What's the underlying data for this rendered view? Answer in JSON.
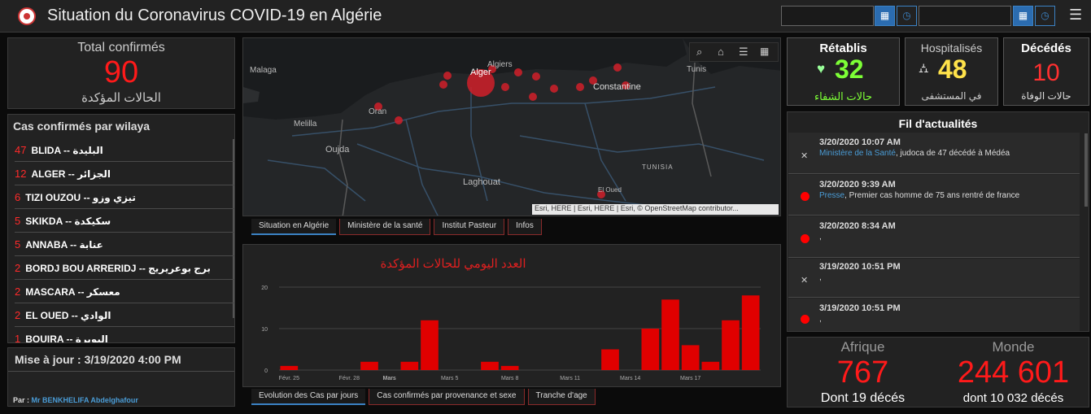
{
  "header": {
    "title": "Situation du Coronavirus COVID-19 en Algérie",
    "menu_icon": "☰",
    "cal_icon": "▦",
    "clock_icon": "◷"
  },
  "total": {
    "title": "Total confirmés",
    "value": "90",
    "label_ar": "الحالات المؤكدة"
  },
  "wilaya": {
    "title": "Cas confirmés par wilaya",
    "items": [
      {
        "count": "47",
        "name": "BLIDA",
        "ar": "البليدة"
      },
      {
        "count": "12",
        "name": "ALGER",
        "ar": "الجزائر"
      },
      {
        "count": "6",
        "name": "TIZI OUZOU",
        "ar": "تيزي وزو"
      },
      {
        "count": "5",
        "name": "SKIKDA",
        "ar": "سكيكدة"
      },
      {
        "count": "5",
        "name": "ANNABA",
        "ar": "عنابة"
      },
      {
        "count": "2",
        "name": "BORDJ BOU ARRERIDJ",
        "ar": "برج بوعريريج"
      },
      {
        "count": "2",
        "name": "MASCARA",
        "ar": "معسكر"
      },
      {
        "count": "2",
        "name": "EL OUED",
        "ar": "الوادي"
      },
      {
        "count": "1",
        "name": "BOUIRA",
        "ar": "البويرة"
      }
    ]
  },
  "update": {
    "text": "Mise à jour : 3/19/2020 4:00 PM",
    "by_label": "Par :",
    "by_name": "Mr BENKHELIFA Abdelghafour"
  },
  "map": {
    "labels": [
      "Malaga",
      "Algiers",
      "Alger",
      "Constantine",
      "Tunis",
      "Oran",
      "Melilla",
      "Oujda",
      "Laghouat",
      "TUNISIA",
      "El Oued"
    ],
    "attribution": "Esri, HERE | Esri, HERE | Esri, © OpenStreetMap contributor..."
  },
  "map_tabs": [
    "Situation en Algérie",
    "Ministère de la santé",
    "Institut Pasteur",
    "Infos"
  ],
  "chart_tabs": [
    "Evolution des Cas par jours",
    "Cas confirmés par provenance et sexe",
    "Tranche d'age"
  ],
  "stats": {
    "recovered": {
      "title": "Rétablis",
      "value": "32",
      "label": "حالات الشفاء"
    },
    "hospital": {
      "title": "Hospitalisés",
      "value": "48",
      "label": "في المستشفى"
    },
    "deaths": {
      "title": "Décédés",
      "value": "10",
      "label": "حالات الوفاة"
    }
  },
  "feed": {
    "title": "Fil d'actualités",
    "items": [
      {
        "time": "3/20/2020 10:07 AM",
        "source": "Ministère de la Santé",
        "text": ", judoca de 47 décédé à Médéa",
        "marker": "x"
      },
      {
        "time": "3/20/2020 9:39 AM",
        "source": "Presse",
        "text": ", Premier cas homme de 75 ans rentré de france",
        "marker": "dot"
      },
      {
        "time": "3/20/2020 8:34 AM",
        "source": "",
        "text": ",",
        "marker": "dot"
      },
      {
        "time": "3/19/2020 10:51 PM",
        "source": "",
        "text": ",",
        "marker": "x"
      },
      {
        "time": "3/19/2020 10:51 PM",
        "source": "",
        "text": ",",
        "marker": "dot"
      }
    ]
  },
  "world": {
    "africa_label": "Afrique",
    "africa_value": "767",
    "africa_sub": "Dont 19 décés",
    "world_label": "Monde",
    "world_value": "244 601",
    "world_sub": "dont 10 032 décés"
  },
  "chart_data": {
    "type": "bar",
    "title": "العدد اليومي للحالات المؤكدة",
    "categories": [
      "02-25",
      "02-26",
      "02-27",
      "02-28",
      "02-29",
      "03-01",
      "03-02",
      "03-03",
      "03-04",
      "03-05",
      "03-06",
      "03-07",
      "03-08",
      "03-09",
      "03-10",
      "03-11",
      "03-12",
      "03-13",
      "03-14",
      "03-15",
      "03-16",
      "03-17",
      "03-18",
      "03-19"
    ],
    "values": [
      1,
      0,
      0,
      0,
      2,
      0,
      2,
      12,
      0,
      0,
      2,
      1,
      0,
      0,
      0,
      0,
      5,
      0,
      10,
      17,
      6,
      2,
      12,
      18
    ],
    "x_ticks": [
      "Févr. 25",
      "Févr. 28",
      "Mars",
      "Mars 5",
      "Mars 8",
      "Mars 11",
      "Mars 14",
      "Mars 17"
    ],
    "y_ticks": [
      0,
      10,
      20
    ],
    "ylim": [
      0,
      20
    ],
    "bar_color": "#e00000"
  }
}
